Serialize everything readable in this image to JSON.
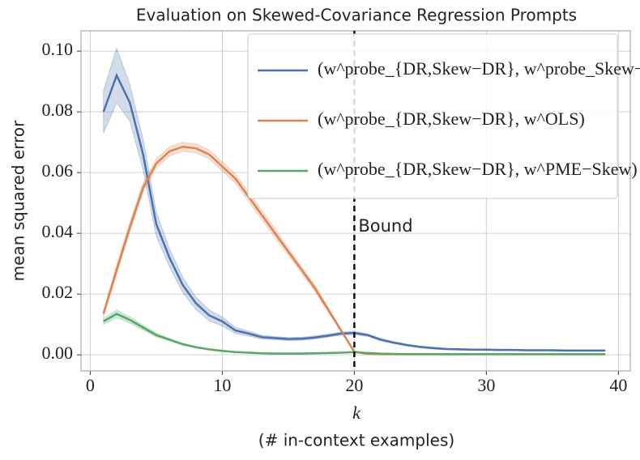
{
  "chart_data": {
    "type": "line",
    "title": "Evaluation on Skewed-Covariance Regression Prompts",
    "xlabel": [
      "k",
      "(# in-context examples)"
    ],
    "ylabel": "mean squared error",
    "x": [
      1,
      2,
      3,
      4,
      5,
      6,
      7,
      8,
      9,
      10,
      11,
      12,
      13,
      14,
      15,
      16,
      17,
      18,
      19,
      20,
      21,
      22,
      23,
      24,
      25,
      26,
      27,
      28,
      29,
      30,
      31,
      32,
      33,
      34,
      35,
      36,
      37,
      38,
      39
    ],
    "series": [
      {
        "name": "(w^probe_{DR,Skew−DR}, w^probe_Skew−DR)",
        "color": "#4c72b0",
        "values": [
          0.08,
          0.092,
          0.083,
          0.066,
          0.043,
          0.032,
          0.023,
          0.017,
          0.013,
          0.011,
          0.008,
          0.007,
          0.0058,
          0.0055,
          0.0052,
          0.0053,
          0.0057,
          0.0063,
          0.007,
          0.0072,
          0.0065,
          0.005,
          0.004,
          0.0032,
          0.0026,
          0.0022,
          0.0019,
          0.0018,
          0.0017,
          0.0017,
          0.0016,
          0.0016,
          0.0015,
          0.0015,
          0.0015,
          0.0014,
          0.0014,
          0.0014,
          0.0014
        ],
        "error": [
          0.007,
          0.009,
          0.006,
          0.005,
          0.004,
          0.003,
          0.0025,
          0.002,
          0.0018,
          0.0015,
          0.001,
          0.0008,
          0.0006,
          0.0005,
          0.0005,
          0.0005,
          0.0005,
          0.0005,
          0.0005,
          0.0005,
          0.0004,
          0.0004,
          0.0003,
          0.0003,
          0.0003,
          0.0003,
          0.0002,
          0.0002,
          0.0002,
          0.0002,
          0.0002,
          0.0002,
          0.0002,
          0.0002,
          0.0002,
          0.0002,
          0.0002,
          0.0002,
          0.0002
        ]
      },
      {
        "name": "(w^probe_{DR,Skew−DR}, w^OLS)",
        "color": "#dd8452",
        "values": [
          0.0135,
          0.028,
          0.042,
          0.055,
          0.063,
          0.067,
          0.0685,
          0.068,
          0.066,
          0.062,
          0.058,
          0.052,
          0.046,
          0.04,
          0.034,
          0.028,
          0.022,
          0.015,
          0.008,
          0.001,
          0.0003,
          0.0002,
          0.0002,
          0.0002,
          0.0002,
          0.0002,
          0.0002,
          0.0002,
          0.0002,
          0.0002,
          0.0002,
          0.0002,
          0.0002,
          0.0002,
          0.0002,
          0.0002,
          0.0002,
          0.0002,
          0.0002
        ],
        "error": [
          0.001,
          0.0015,
          0.0015,
          0.0015,
          0.0015,
          0.0015,
          0.0015,
          0.0015,
          0.0015,
          0.0015,
          0.0015,
          0.0015,
          0.0015,
          0.0015,
          0.0012,
          0.001,
          0.001,
          0.0008,
          0.0005,
          0.0003,
          0.0001,
          0.0001,
          0.0001,
          0.0001,
          0.0001,
          0.0001,
          0.0001,
          0.0001,
          0.0001,
          0.0001,
          0.0001,
          0.0001,
          0.0001,
          0.0001,
          0.0001,
          0.0001,
          0.0001,
          0.0001,
          0.0001
        ]
      },
      {
        "name": "(w^probe_{DR,Skew−DR}, w^PME−Skew)",
        "color": "#55a868",
        "values": [
          0.011,
          0.0135,
          0.0115,
          0.009,
          0.0065,
          0.005,
          0.0035,
          0.0025,
          0.0018,
          0.0013,
          0.0009,
          0.0007,
          0.0005,
          0.0004,
          0.0004,
          0.0004,
          0.0005,
          0.0006,
          0.0007,
          0.0009,
          0.0006,
          0.0004,
          0.0003,
          0.0002,
          0.0002,
          0.0002,
          0.0002,
          0.0002,
          0.0002,
          0.0002,
          0.0002,
          0.0002,
          0.0002,
          0.0002,
          0.0002,
          0.0002,
          0.0002,
          0.0002,
          0.0002
        ],
        "error": [
          0.001,
          0.0012,
          0.001,
          0.0008,
          0.0006,
          0.0004,
          0.0003,
          0.0002,
          0.0002,
          0.0001,
          0.0001,
          0.0001,
          0.0001,
          0.0001,
          0.0001,
          0.0001,
          0.0001,
          0.0001,
          0.0001,
          0.0001,
          0.0001,
          0.0001,
          0.0001,
          0.0001,
          0.0001,
          0.0001,
          0.0001,
          0.0001,
          0.0001,
          0.0001,
          0.0001,
          0.0001,
          0.0001,
          0.0001,
          0.0001,
          0.0001,
          0.0001,
          0.0001,
          0.0001
        ]
      }
    ],
    "xlim": [
      -0.7,
      40.9
    ],
    "xticks": [
      0,
      10,
      20,
      30,
      40
    ],
    "ylim": [
      -0.0053,
      0.1067
    ],
    "yticks": [
      {
        "value": 0,
        "label": "0.00"
      },
      {
        "value": 0.02,
        "label": "0.02"
      },
      {
        "value": 0.04,
        "label": "0.04"
      },
      {
        "value": 0.06,
        "label": "0.06"
      },
      {
        "value": 0.08,
        "label": "0.08"
      },
      {
        "value": 0.1,
        "label": "0.10"
      }
    ],
    "grid": true,
    "legend": "upper right",
    "vline": {
      "x": 20,
      "label": "Bound",
      "color": "#c44e52"
    }
  }
}
